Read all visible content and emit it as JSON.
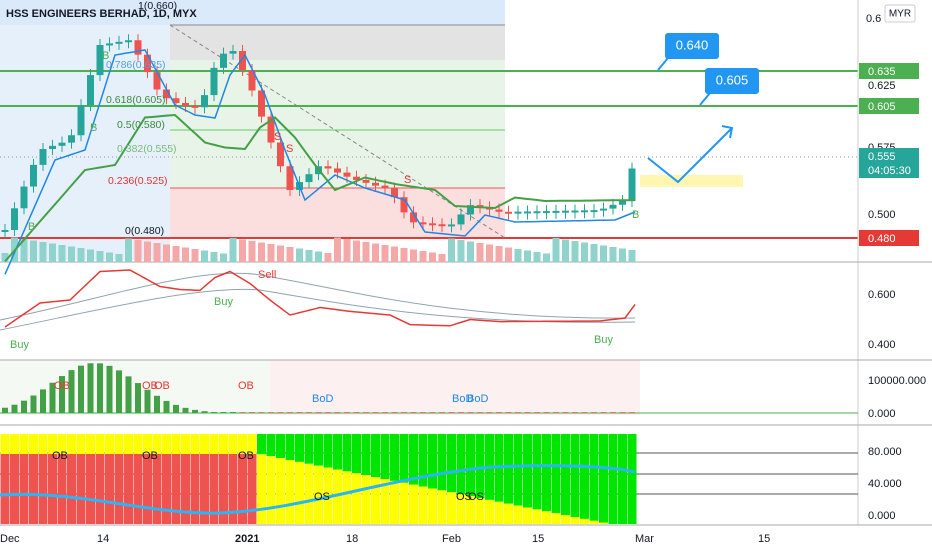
{
  "header": {
    "title": "HSS ENGINEERS BERHAD, 1D, MYX",
    "currency": "MYR"
  },
  "fib_levels": [
    "1(0.660)",
    "0.786(0.635)",
    "0.618(0.605)",
    "0.5(0.580)",
    "0.382(0.555)",
    "0.236(0.525)",
    "0(0.480)"
  ],
  "price_axis": [
    "0.6",
    "0.625",
    "0.575",
    "0.500"
  ],
  "price_tags": [
    "0.635",
    "0.605",
    "0.555",
    "04:05:30",
    "0.480"
  ],
  "callouts": [
    "0.640",
    "0.605"
  ],
  "signals": [
    "B",
    "B",
    "B",
    "S",
    "S",
    "S",
    "B"
  ],
  "panel2": {
    "labels": [
      "Sell",
      "Buy",
      "Buy",
      "Buy"
    ],
    "axis": [
      "0.600",
      "0.400"
    ]
  },
  "panel3": {
    "labels": [
      "OB",
      "OB",
      "OB",
      "OB",
      "BoD",
      "BoD",
      "BoD"
    ],
    "axis": [
      "100000.000",
      "0.000"
    ]
  },
  "panel4": {
    "labels": [
      "OB",
      "OB",
      "OB",
      "OS",
      "OS",
      "OS"
    ],
    "axis": [
      "80.000",
      "40.000",
      "0.000"
    ]
  },
  "x_axis": [
    "Dec",
    "14",
    "2021",
    "18",
    "Feb",
    "15",
    "Mar",
    "15"
  ]
}
